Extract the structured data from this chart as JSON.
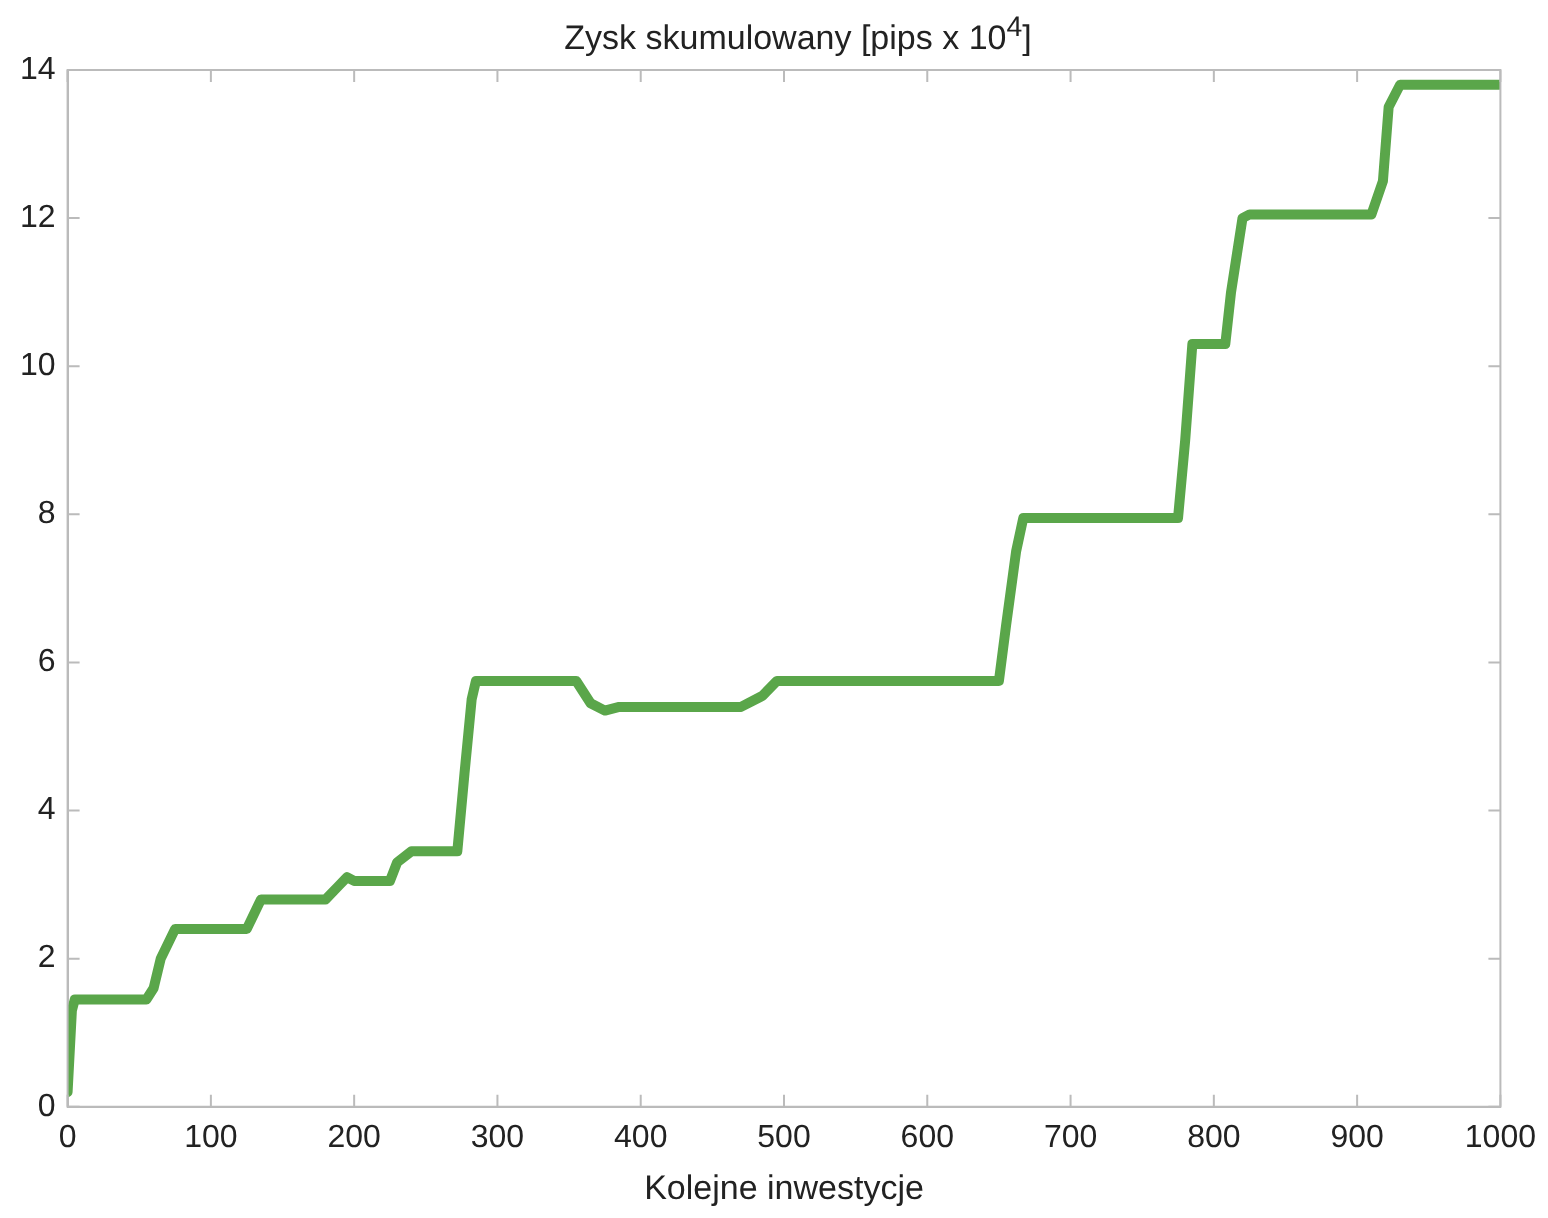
{
  "chart_data": {
    "type": "line",
    "title": "Zysk skumulowany [pips x 10$^{4}$]",
    "xlabel": "Kolejne inwestycje",
    "xlim": [
      0,
      1000
    ],
    "xticks": [
      0,
      100,
      200,
      300,
      400,
      500,
      600,
      700,
      800,
      900,
      1000
    ],
    "ylim": [
      0,
      14
    ],
    "yticks": [
      0,
      2,
      4,
      6,
      8,
      10,
      12,
      14
    ],
    "grid": false,
    "legend": false,
    "marker": "none",
    "line_style": "solid",
    "series": [
      {
        "color": "#5aa64a",
        "x": [
          0,
          3,
          5,
          55,
          60,
          65,
          70,
          75,
          125,
          135,
          180,
          190,
          195,
          200,
          225,
          230,
          240,
          272,
          277,
          282,
          285,
          355,
          365,
          375,
          385,
          470,
          485,
          495,
          650,
          655,
          662,
          667,
          775,
          780,
          785,
          808,
          812,
          820,
          825,
          910,
          918,
          922,
          930,
          1000
        ],
        "values": [
          0.2,
          1.3,
          1.45,
          1.45,
          1.6,
          2.0,
          2.2,
          2.4,
          2.4,
          2.8,
          2.8,
          3.0,
          3.1,
          3.05,
          3.05,
          3.3,
          3.45,
          3.45,
          4.5,
          5.5,
          5.75,
          5.75,
          5.45,
          5.35,
          5.4,
          5.4,
          5.55,
          5.75,
          5.75,
          6.5,
          7.5,
          7.95,
          7.95,
          9,
          10.3,
          10.3,
          11,
          12,
          12.05,
          12.05,
          12.5,
          13.5,
          13.8,
          13.8
        ]
      }
    ]
  }
}
